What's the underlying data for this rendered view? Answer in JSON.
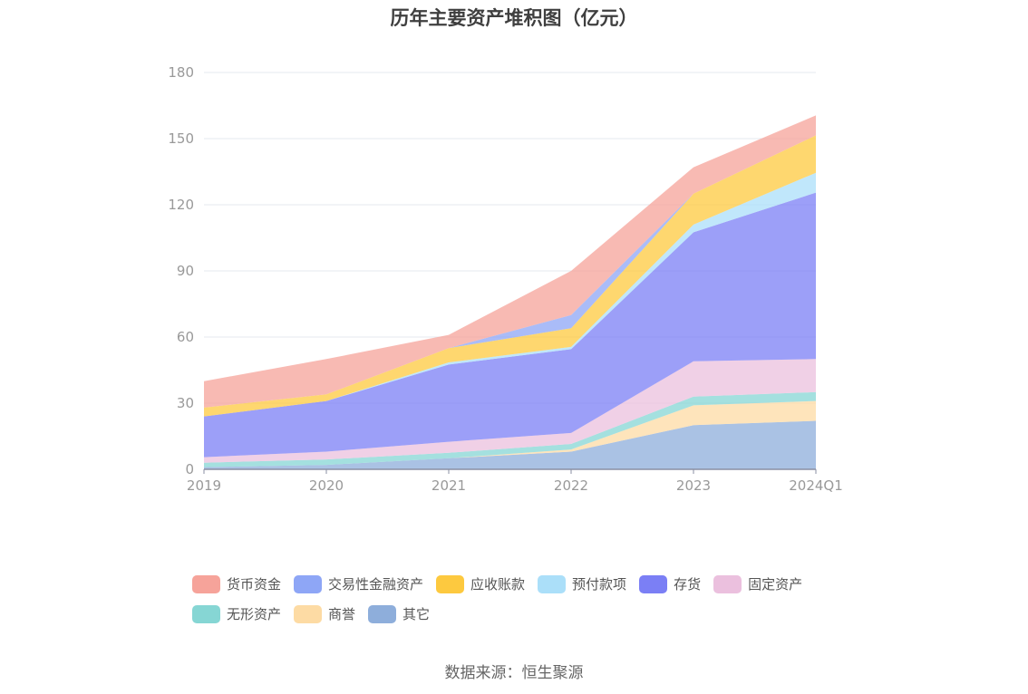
{
  "title": "历年主要资产堆积图（亿元）",
  "source": "数据来源：恒生聚源",
  "chart_data": {
    "type": "area",
    "stacked": true,
    "title": "历年主要资产堆积图（亿元）",
    "categories": [
      "2019",
      "2020",
      "2021",
      "2022",
      "2023",
      "2024Q1"
    ],
    "ylim": [
      0,
      180
    ],
    "yticks": [
      0,
      30,
      60,
      90,
      120,
      150,
      180
    ],
    "grid": true,
    "legend_position": "bottom",
    "series": [
      {
        "name": "其它",
        "color": "#8eaedb",
        "values": [
          1,
          2,
          5,
          8,
          20,
          22
        ]
      },
      {
        "name": "商誉",
        "color": "#fddba4",
        "values": [
          0,
          0,
          0,
          1,
          9,
          9
        ]
      },
      {
        "name": "无形资产",
        "color": "#86d6d4",
        "values": [
          2,
          2.5,
          2.5,
          2.5,
          4,
          4
        ]
      },
      {
        "name": "固定资产",
        "color": "#ebc0de",
        "values": [
          2.5,
          3.5,
          5,
          5,
          16,
          15
        ]
      },
      {
        "name": "存货",
        "color": "#7b7ff5",
        "values": [
          18.5,
          23,
          35,
          38,
          58.5,
          75.5
        ]
      },
      {
        "name": "预付款项",
        "color": "#abdff9",
        "values": [
          0,
          0,
          1,
          1,
          3.5,
          9
        ]
      },
      {
        "name": "应收账款",
        "color": "#fdc93f",
        "values": [
          4,
          3,
          6.5,
          8.5,
          14,
          17
        ]
      },
      {
        "name": "交易性金融资产",
        "color": "#8ea6f6",
        "values": [
          0,
          0,
          0,
          6,
          0,
          0
        ]
      },
      {
        "name": "货币资金",
        "color": "#f6a39a",
        "values": [
          12,
          16,
          6,
          20,
          12,
          9
        ]
      }
    ],
    "legend_order": [
      "货币资金",
      "交易性金融资产",
      "应收账款",
      "预付款项",
      "存货",
      "固定资产",
      "无形资产",
      "商誉",
      "其它"
    ]
  }
}
